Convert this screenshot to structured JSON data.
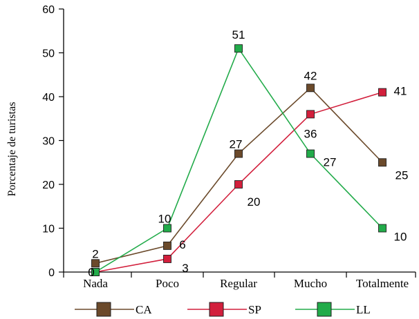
{
  "chart_data": {
    "type": "line",
    "categories": [
      "Nada",
      "Poco",
      "Regular",
      "Mucho",
      "Totalmente"
    ],
    "ylabel": "Porcentaje de turistas",
    "xlabel": "",
    "ylim": [
      0,
      60
    ],
    "yticks": [
      0,
      10,
      20,
      30,
      40,
      50,
      60
    ],
    "grid": false,
    "legend_position": "bottom",
    "series": [
      {
        "name": "CA",
        "color": "#6b4a2b",
        "values": [
          2,
          6,
          27,
          42,
          25
        ],
        "labels": [
          "2",
          "6",
          "27",
          "42",
          "25"
        ]
      },
      {
        "name": "SP",
        "color": "#d21f3c",
        "values": [
          0,
          3,
          20,
          36,
          41
        ],
        "labels": [
          "0",
          "3",
          "20",
          "36",
          "41"
        ]
      },
      {
        "name": "LL",
        "color": "#22ab4a",
        "values": [
          0,
          10,
          51,
          27,
          10
        ],
        "labels": [
          "",
          "10",
          "51",
          "27",
          "10"
        ]
      }
    ]
  }
}
